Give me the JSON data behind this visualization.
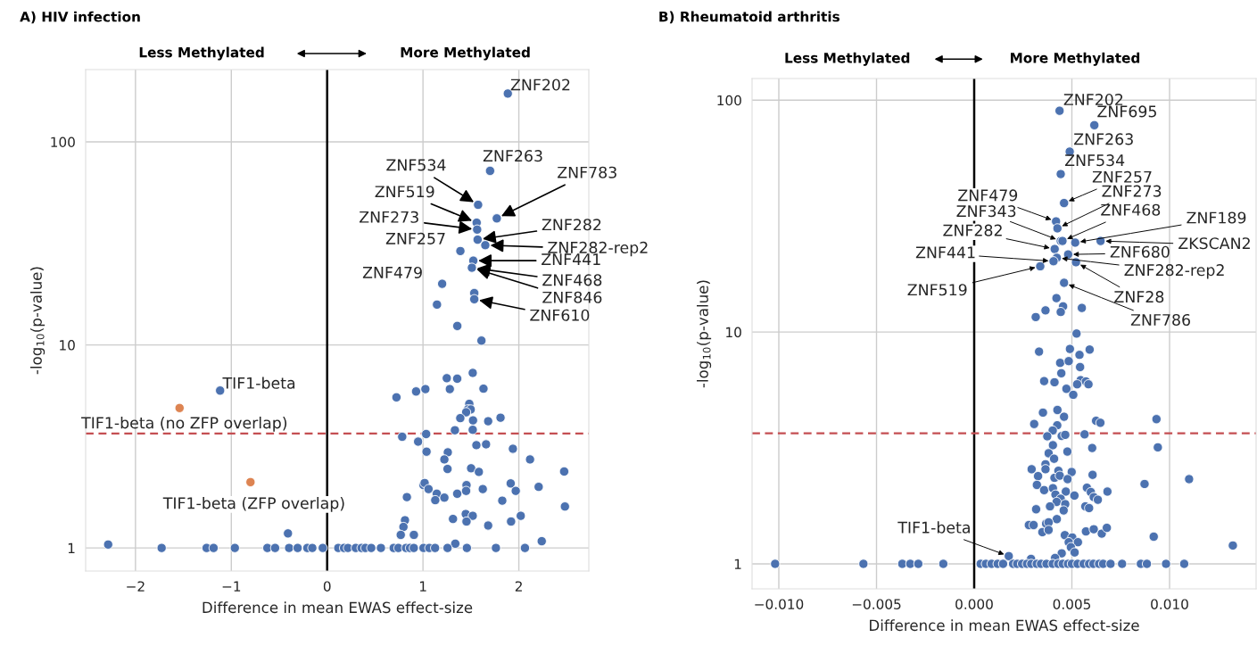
{
  "chart_data": [
    {
      "type": "scatter",
      "title": "A) HIV infection",
      "xlabel": "Difference in mean EWAS effect-size",
      "ylabel": "-log$_{10}$(p-value)",
      "log": "y",
      "xlim": [
        -2.52,
        2.73
      ],
      "ylim": [
        0.77,
        227
      ],
      "xticks": [
        {
          "value": -2,
          "label": "−2"
        },
        {
          "value": -1,
          "label": "−1"
        },
        0,
        1,
        2
      ],
      "yticks": [
        1,
        10,
        100
      ],
      "grid": true,
      "marker": "circle",
      "series": [
        {
          "color": "#4c72b0",
          "x": [
            1.885,
            1.7,
            1.575,
            1.77,
            1.56,
            1.565,
            1.57,
            1.65,
            1.39,
            1.525,
            1.51,
            1.2,
            1.535,
            1.535,
            1.146,
            1.358,
            1.61,
            1.248,
            1.357,
            1.519,
            0.928,
            1.025,
            1.28,
            1.631,
            0.723,
            1.483,
            1.47,
            1.498,
            1.45,
            1.389,
            1.522,
            1.68,
            1.809,
            1.333,
            1.519,
            1.033,
            0.783,
            0.949,
            1.557,
            1.658,
            1.938,
            1.037,
            1.259,
            1.223,
            2.117,
            1.256,
            1.502,
            1.583,
            2.473,
            1.005,
            1.017,
            1.058,
            1.454,
            1.624,
            1.915,
            1.968,
            2.207,
            1.357,
            1.45,
            1.144,
            1.128,
            1.223,
            0.832,
            1.827,
            2.481,
            1.446,
            1.519,
            2.02,
            1.313,
            1.454,
            1.919,
            0.812,
            0.796,
            1.68,
            0.768,
            0.905,
            -0.409,
            1.337,
            2.239,
            -2.285,
            -1.117,
            -1.727,
            -1.258,
            -1.185,
            -0.963,
            -0.624,
            -0.543,
            -0.397,
            -0.308,
            -0.207,
            -0.155,
            -0.046,
            0.116,
            0.176,
            0.217,
            0.298,
            0.359,
            0.399,
            0.46,
            0.561,
            0.694,
            0.743,
            0.823,
            0.864,
            0.904,
            1.005,
            1.066,
            1.126,
            1.256,
            1.458,
            1.761,
            2.064
          ],
          "values": [
            173,
            72,
            49,
            42,
            40,
            37,
            33,
            31,
            29,
            26,
            24,
            20,
            18,
            16.8,
            15.8,
            12.4,
            10.5,
            6.86,
            6.82,
            7.28,
            5.9,
            6.06,
            6.06,
            6.09,
            5.52,
            5.13,
            4.82,
            4.81,
            4.66,
            4.36,
            4.25,
            4.21,
            4.38,
            3.8,
            3.82,
            3.64,
            3.53,
            3.34,
            3.21,
            3.24,
            3.08,
            2.98,
            2.96,
            2.73,
            2.73,
            2.45,
            2.47,
            2.37,
            2.38,
            2.04,
            2.09,
            1.95,
            2.04,
            1.95,
            2.08,
            1.91,
            2.0,
            1.85,
            1.91,
            1.85,
            1.72,
            1.77,
            1.78,
            1.71,
            1.6,
            1.47,
            1.44,
            1.44,
            1.39,
            1.35,
            1.35,
            1.37,
            1.27,
            1.29,
            1.16,
            1.16,
            1.18,
            1.05,
            1.08,
            1.04,
            5.96,
            1,
            1,
            1,
            1,
            1,
            1,
            1,
            1,
            1,
            1,
            1,
            1,
            1,
            1,
            1,
            1,
            1,
            1,
            1,
            1,
            1,
            1,
            1,
            1,
            1,
            1,
            1,
            1,
            1,
            1,
            1
          ]
        },
        {
          "color": "#dd8452",
          "x": [
            -1.54,
            -0.8
          ],
          "values": [
            4.89,
            2.11
          ]
        }
      ],
      "ref_lines": [
        {
          "axis": "x",
          "value": 0,
          "color": "#000000",
          "line_style": "solid"
        },
        {
          "axis": "y",
          "value": 3.66,
          "color": "#c44e52",
          "line_style": "dashed"
        }
      ],
      "annotations": [
        {
          "text": "ZNF202",
          "x": 1.885,
          "y": 173
        },
        {
          "text": "ZNF263",
          "x": 1.7,
          "y": 72
        },
        {
          "text": "ZNF534",
          "x": 1.575,
          "y": 49
        },
        {
          "text": "ZNF783",
          "x": 1.77,
          "y": 42
        },
        {
          "text": "ZNF519",
          "x": 1.56,
          "y": 40
        },
        {
          "text": "ZNF273",
          "x": 1.565,
          "y": 37
        },
        {
          "text": "ZNF282",
          "x": 1.57,
          "y": 33
        },
        {
          "text": "ZNF282-rep2",
          "x": 1.65,
          "y": 31
        },
        {
          "text": "ZNF257",
          "x": 1.39,
          "y": 29
        },
        {
          "text": "ZNF441",
          "x": 1.525,
          "y": 26
        },
        {
          "text": "ZNF468",
          "x": 1.51,
          "y": 24
        },
        {
          "text": "ZNF846",
          "x": 1.51,
          "y": 24
        },
        {
          "text": "ZNF610",
          "x": 1.535,
          "y": 16.8
        },
        {
          "text": "ZNF479",
          "x": 1.2,
          "y": 20
        },
        {
          "text": "TIF1-beta",
          "x": -1.117,
          "y": 5.96
        },
        {
          "text": "TIF1-beta (no ZFP overlap)",
          "x": -1.54,
          "y": 4.89
        },
        {
          "text": "TIF1-beta (ZFP overlap)",
          "x": -0.8,
          "y": 2.11
        },
        "Less Methylated",
        "More Methylated"
      ]
    },
    {
      "type": "scatter",
      "title": "B) Rheumatoid arthritis",
      "xlabel": "Difference in mean EWAS effect-size",
      "ylabel": "-log$_{10}$(p-value)",
      "log": "y",
      "xlim": [
        -0.01137,
        0.01443
      ],
      "ylim": [
        0.78,
        124
      ],
      "xticks": [
        {
          "value": -0.01,
          "label": "−0.010"
        },
        {
          "value": -0.005,
          "label": "−0.005"
        },
        {
          "value": 0,
          "label": "0.000"
        },
        {
          "value": 0.005,
          "label": "0.005"
        },
        {
          "value": 0.01,
          "label": "0.010"
        }
      ],
      "yticks": [
        1,
        10,
        100
      ],
      "grid": true,
      "marker": "circle",
      "series": [
        {
          "color": "#4c72b0",
          "x": [
            0.00437,
            0.00615,
            0.00489,
            0.00443,
            0.0046,
            0.00419,
            0.00426,
            0.00443,
            0.00452,
            0.00517,
            0.00647,
            0.00412,
            0.00481,
            0.00423,
            0.00406,
            0.00338,
            0.00521,
            0.0046,
            0.00421,
            0.00455,
            0.00551,
            0.00365,
            0.00443,
            0.00315,
            0.00524,
            0.00332,
            0.0049,
            0.00591,
            0.00539,
            0.0044,
            0.00484,
            0.00542,
            0.00446,
            0.00358,
            0.00411,
            0.00545,
            0.00572,
            0.00585,
            0.00527,
            0.00472,
            0.00507,
            0.00352,
            0.00426,
            0.0046,
            0.00624,
            0.00646,
            0.00307,
            0.00425,
            0.00402,
            0.00374,
            0.00448,
            0.00466,
            0.00565,
            0.00403,
            0.00604,
            0.00381,
            0.00477,
            0.00409,
            0.00365,
            0.00294,
            0.00365,
            0.00431,
            0.00499,
            0.00327,
            0.00411,
            0.00438,
            0.00478,
            0.00606,
            0.00321,
            0.00358,
            0.00403,
            0.00416,
            0.00469,
            0.00513,
            0.00577,
            0.00597,
            0.00612,
            0.00633,
            0.00682,
            0.00443,
            0.00422,
            0.00466,
            0.00569,
            0.00588,
            0.00317,
            0.00388,
            0.00458,
            0.00423,
            0.0028,
            0.00304,
            0.00368,
            0.00381,
            0.00349,
            0.00381,
            0.00572,
            0.00612,
            0.00653,
            0.00679,
            0.00464,
            0.00502,
            0.00484,
            0.00531,
            0.00495,
            0.00514,
            0.00448,
            0.00414,
            0.00291,
            0.00177,
            0.00933,
            0.0094,
            0.011,
            0.00872,
            0.00919,
            0.01324,
            -0.01019,
            -0.00567,
            -0.00368,
            -0.00327,
            -0.00286,
            -0.00158,
            0.00033,
            0.0006,
            0.00089,
            0.0012,
            0.00148,
            0.00199,
            0.0022,
            0.00245,
            0.0027,
            0.00292,
            0.0032,
            0.00342,
            0.0037,
            0.00402,
            0.0043,
            0.00453,
            0.0048,
            0.005,
            0.00529,
            0.0056,
            0.00588,
            0.0061,
            0.00639,
            0.0066,
            0.00698,
            0.00757,
            0.00853,
            0.00884,
            0.00982,
            0.01075
          ],
          "values": [
            90,
            78,
            60,
            48,
            36,
            30,
            28,
            24.7,
            24.7,
            24.3,
            24.7,
            22.8,
            21.6,
            20.9,
            20.2,
            19.2,
            20,
            16.3,
            14.0,
            12.9,
            12.7,
            12.4,
            12.2,
            11.6,
            9.85,
            8.23,
            8.45,
            8.4,
            7.97,
            7.36,
            7.49,
            7.06,
            6.64,
            6.14,
            6.07,
            6.2,
            6.12,
            5.95,
            5.95,
            5.69,
            5.36,
            4.49,
            4.61,
            4.31,
            4.14,
            4.06,
            4.01,
            3.96,
            3.76,
            3.55,
            3.56,
            3.6,
            3.62,
            3.25,
            3.16,
            3.0,
            3.05,
            2.84,
            2.69,
            2.56,
            2.56,
            2.52,
            2.49,
            2.39,
            2.35,
            2.4,
            2.32,
            2.42,
            2.19,
            2.08,
            2.12,
            1.99,
            2.05,
            1.97,
            2.13,
            2.04,
            1.94,
            1.89,
            2.05,
            1.91,
            1.85,
            1.81,
            1.77,
            1.74,
            1.72,
            1.77,
            1.7,
            1.56,
            1.47,
            1.47,
            1.49,
            1.51,
            1.37,
            1.4,
            1.38,
            1.41,
            1.35,
            1.43,
            1.33,
            1.3,
            1.24,
            1.24,
            1.18,
            1.12,
            1.11,
            1.06,
            1.05,
            1.08,
            4.21,
            3.18,
            2.32,
            2.21,
            1.31,
            1.2,
            1,
            1,
            1,
            1,
            1,
            1,
            1,
            1,
            1,
            1,
            1,
            1,
            1,
            1,
            1,
            1,
            1,
            1,
            1,
            1,
            1,
            1,
            1,
            1,
            1,
            1,
            1,
            1,
            1,
            1,
            1,
            1,
            1,
            1,
            1,
            1
          ]
        }
      ],
      "ref_lines": [
        {
          "axis": "x",
          "value": 0,
          "color": "#000000",
          "line_style": "solid"
        },
        {
          "axis": "y",
          "value": 3.66,
          "color": "#c44e52",
          "line_style": "dashed"
        }
      ],
      "annotations": [
        {
          "text": "ZNF202",
          "x": 0.00437,
          "y": 90
        },
        {
          "text": "ZNF695",
          "x": 0.00615,
          "y": 78
        },
        {
          "text": "ZNF263",
          "x": 0.00489,
          "y": 60
        },
        {
          "text": "ZNF534",
          "x": 0.00443,
          "y": 48
        },
        {
          "text": "ZNF257",
          "x": 0.0046,
          "y": 36
        },
        {
          "text": "ZNF273",
          "x": 0.00426,
          "y": 28
        },
        {
          "text": "ZNF468",
          "x": 0.00452,
          "y": 24.7
        },
        {
          "text": "ZNF479",
          "x": 0.00419,
          "y": 30
        },
        {
          "text": "ZNF343",
          "x": 0.00443,
          "y": 24.7
        },
        {
          "text": "ZNF282",
          "x": 0.00412,
          "y": 22.8
        },
        {
          "text": "ZNF189",
          "x": 0.00517,
          "y": 24.3
        },
        {
          "text": "ZKSCAN2",
          "x": 0.00647,
          "y": 24.7
        },
        {
          "text": "ZNF680",
          "x": 0.00481,
          "y": 21.6
        },
        {
          "text": "ZNF441",
          "x": 0.00406,
          "y": 20.2
        },
        {
          "text": "ZNF282-rep2",
          "x": 0.00423,
          "y": 20.9
        },
        {
          "text": "ZNF519",
          "x": 0.00338,
          "y": 19.2
        },
        {
          "text": "ZNF28",
          "x": 0.00521,
          "y": 20
        },
        {
          "text": "ZNF786",
          "x": 0.0046,
          "y": 16.3
        },
        {
          "text": "TIF1-beta",
          "x": 0.00177,
          "y": 1.08
        },
        "Less Methylated",
        "More Methylated"
      ]
    }
  ]
}
